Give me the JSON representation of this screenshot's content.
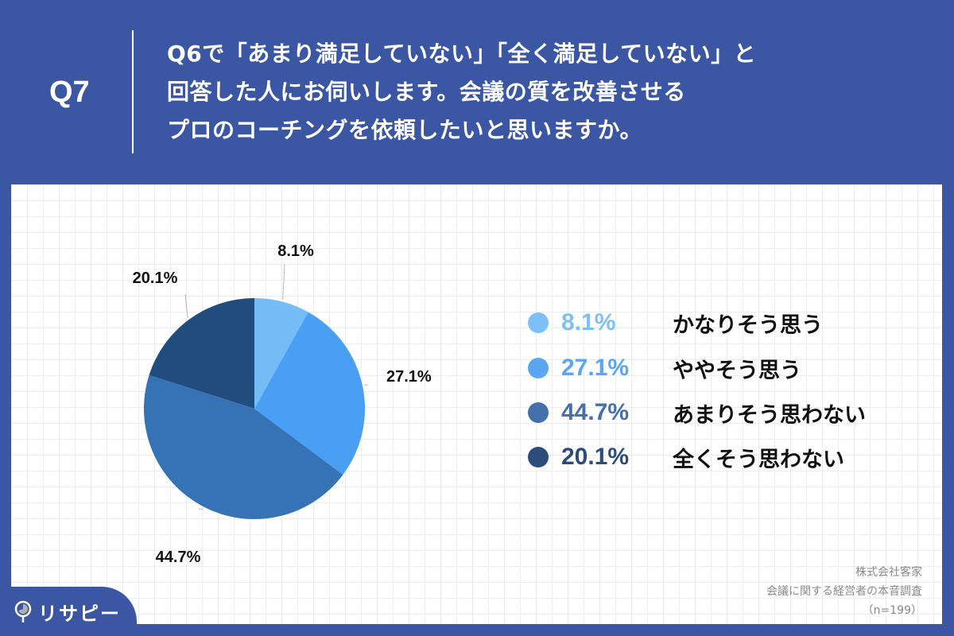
{
  "header": {
    "question_number": "Q7",
    "question_lines": [
      "Q6で「あまり満足していない」「全く満足していない」と",
      "回答した人にお伺いします。会議の質を改善させる",
      "プロのコーチングを依頼したいと思いますか。"
    ]
  },
  "colors": {
    "background": "#3b57a3",
    "slice_1": "#74bdf7",
    "slice_2": "#489ff4",
    "slice_3": "#3573b6",
    "slice_4": "#204d7e",
    "legend_pct_1": "#7cc0f7",
    "legend_pct_2": "#5aa6f2",
    "legend_pct_3": "#4470ab",
    "legend_pct_4": "#2a4d7c"
  },
  "legend": [
    {
      "pct": "8.1%",
      "label": "かなりそう思う"
    },
    {
      "pct": "27.1%",
      "label": "ややそう思う"
    },
    {
      "pct": "44.7%",
      "label": "あまりそう思わない"
    },
    {
      "pct": "20.1%",
      "label": "全くそう思わない"
    }
  ],
  "pie_labels": [
    "8.1%",
    "27.1%",
    "44.7%",
    "20.1%"
  ],
  "footer": {
    "company": "株式会社客家",
    "survey": "会議に関する経営者の本音調査",
    "sample": "（n=199）"
  },
  "brand": {
    "name": "リサピー"
  },
  "chart_data": {
    "type": "pie",
    "title": "Q6で「あまり満足していない」「全く満足していない」と回答した人にお伺いします。会議の質を改善させるプロのコーチングを依頼したいと思いますか。",
    "categories": [
      "かなりそう思う",
      "ややそう思う",
      "あまりそう思わない",
      "全くそう思わない"
    ],
    "values": [
      8.1,
      27.1,
      44.7,
      20.1
    ],
    "unit": "%",
    "n": 199,
    "start_angle": "12 o'clock",
    "direction": "clockwise",
    "legend_position": "right"
  }
}
